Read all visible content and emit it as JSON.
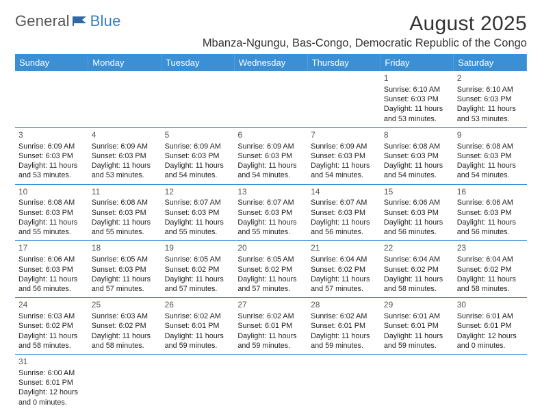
{
  "brand": {
    "part1": "General",
    "part2": "Blue"
  },
  "title": "August 2025",
  "location": "Mbanza-Ngungu, Bas-Congo, Democratic Republic of the Congo",
  "colors": {
    "header_bg": "#3b8fd4",
    "header_text": "#ffffff",
    "cell_border": "#3b8fd4",
    "text": "#222222",
    "brand_gray": "#555555",
    "brand_blue": "#3b7fc4",
    "background": "#ffffff"
  },
  "weekdays": [
    "Sunday",
    "Monday",
    "Tuesday",
    "Wednesday",
    "Thursday",
    "Friday",
    "Saturday"
  ],
  "weeks": [
    [
      null,
      null,
      null,
      null,
      null,
      {
        "day": "1",
        "sunrise": "Sunrise: 6:10 AM",
        "sunset": "Sunset: 6:03 PM",
        "daylight": "Daylight: 11 hours and 53 minutes."
      },
      {
        "day": "2",
        "sunrise": "Sunrise: 6:10 AM",
        "sunset": "Sunset: 6:03 PM",
        "daylight": "Daylight: 11 hours and 53 minutes."
      }
    ],
    [
      {
        "day": "3",
        "sunrise": "Sunrise: 6:09 AM",
        "sunset": "Sunset: 6:03 PM",
        "daylight": "Daylight: 11 hours and 53 minutes."
      },
      {
        "day": "4",
        "sunrise": "Sunrise: 6:09 AM",
        "sunset": "Sunset: 6:03 PM",
        "daylight": "Daylight: 11 hours and 53 minutes."
      },
      {
        "day": "5",
        "sunrise": "Sunrise: 6:09 AM",
        "sunset": "Sunset: 6:03 PM",
        "daylight": "Daylight: 11 hours and 54 minutes."
      },
      {
        "day": "6",
        "sunrise": "Sunrise: 6:09 AM",
        "sunset": "Sunset: 6:03 PM",
        "daylight": "Daylight: 11 hours and 54 minutes."
      },
      {
        "day": "7",
        "sunrise": "Sunrise: 6:09 AM",
        "sunset": "Sunset: 6:03 PM",
        "daylight": "Daylight: 11 hours and 54 minutes."
      },
      {
        "day": "8",
        "sunrise": "Sunrise: 6:08 AM",
        "sunset": "Sunset: 6:03 PM",
        "daylight": "Daylight: 11 hours and 54 minutes."
      },
      {
        "day": "9",
        "sunrise": "Sunrise: 6:08 AM",
        "sunset": "Sunset: 6:03 PM",
        "daylight": "Daylight: 11 hours and 54 minutes."
      }
    ],
    [
      {
        "day": "10",
        "sunrise": "Sunrise: 6:08 AM",
        "sunset": "Sunset: 6:03 PM",
        "daylight": "Daylight: 11 hours and 55 minutes."
      },
      {
        "day": "11",
        "sunrise": "Sunrise: 6:08 AM",
        "sunset": "Sunset: 6:03 PM",
        "daylight": "Daylight: 11 hours and 55 minutes."
      },
      {
        "day": "12",
        "sunrise": "Sunrise: 6:07 AM",
        "sunset": "Sunset: 6:03 PM",
        "daylight": "Daylight: 11 hours and 55 minutes."
      },
      {
        "day": "13",
        "sunrise": "Sunrise: 6:07 AM",
        "sunset": "Sunset: 6:03 PM",
        "daylight": "Daylight: 11 hours and 55 minutes."
      },
      {
        "day": "14",
        "sunrise": "Sunrise: 6:07 AM",
        "sunset": "Sunset: 6:03 PM",
        "daylight": "Daylight: 11 hours and 56 minutes."
      },
      {
        "day": "15",
        "sunrise": "Sunrise: 6:06 AM",
        "sunset": "Sunset: 6:03 PM",
        "daylight": "Daylight: 11 hours and 56 minutes."
      },
      {
        "day": "16",
        "sunrise": "Sunrise: 6:06 AM",
        "sunset": "Sunset: 6:03 PM",
        "daylight": "Daylight: 11 hours and 56 minutes."
      }
    ],
    [
      {
        "day": "17",
        "sunrise": "Sunrise: 6:06 AM",
        "sunset": "Sunset: 6:03 PM",
        "daylight": "Daylight: 11 hours and 56 minutes."
      },
      {
        "day": "18",
        "sunrise": "Sunrise: 6:05 AM",
        "sunset": "Sunset: 6:03 PM",
        "daylight": "Daylight: 11 hours and 57 minutes."
      },
      {
        "day": "19",
        "sunrise": "Sunrise: 6:05 AM",
        "sunset": "Sunset: 6:02 PM",
        "daylight": "Daylight: 11 hours and 57 minutes."
      },
      {
        "day": "20",
        "sunrise": "Sunrise: 6:05 AM",
        "sunset": "Sunset: 6:02 PM",
        "daylight": "Daylight: 11 hours and 57 minutes."
      },
      {
        "day": "21",
        "sunrise": "Sunrise: 6:04 AM",
        "sunset": "Sunset: 6:02 PM",
        "daylight": "Daylight: 11 hours and 57 minutes."
      },
      {
        "day": "22",
        "sunrise": "Sunrise: 6:04 AM",
        "sunset": "Sunset: 6:02 PM",
        "daylight": "Daylight: 11 hours and 58 minutes."
      },
      {
        "day": "23",
        "sunrise": "Sunrise: 6:04 AM",
        "sunset": "Sunset: 6:02 PM",
        "daylight": "Daylight: 11 hours and 58 minutes."
      }
    ],
    [
      {
        "day": "24",
        "sunrise": "Sunrise: 6:03 AM",
        "sunset": "Sunset: 6:02 PM",
        "daylight": "Daylight: 11 hours and 58 minutes."
      },
      {
        "day": "25",
        "sunrise": "Sunrise: 6:03 AM",
        "sunset": "Sunset: 6:02 PM",
        "daylight": "Daylight: 11 hours and 58 minutes."
      },
      {
        "day": "26",
        "sunrise": "Sunrise: 6:02 AM",
        "sunset": "Sunset: 6:01 PM",
        "daylight": "Daylight: 11 hours and 59 minutes."
      },
      {
        "day": "27",
        "sunrise": "Sunrise: 6:02 AM",
        "sunset": "Sunset: 6:01 PM",
        "daylight": "Daylight: 11 hours and 59 minutes."
      },
      {
        "day": "28",
        "sunrise": "Sunrise: 6:02 AM",
        "sunset": "Sunset: 6:01 PM",
        "daylight": "Daylight: 11 hours and 59 minutes."
      },
      {
        "day": "29",
        "sunrise": "Sunrise: 6:01 AM",
        "sunset": "Sunset: 6:01 PM",
        "daylight": "Daylight: 11 hours and 59 minutes."
      },
      {
        "day": "30",
        "sunrise": "Sunrise: 6:01 AM",
        "sunset": "Sunset: 6:01 PM",
        "daylight": "Daylight: 12 hours and 0 minutes."
      }
    ],
    [
      {
        "day": "31",
        "sunrise": "Sunrise: 6:00 AM",
        "sunset": "Sunset: 6:01 PM",
        "daylight": "Daylight: 12 hours and 0 minutes."
      },
      null,
      null,
      null,
      null,
      null,
      null
    ]
  ]
}
